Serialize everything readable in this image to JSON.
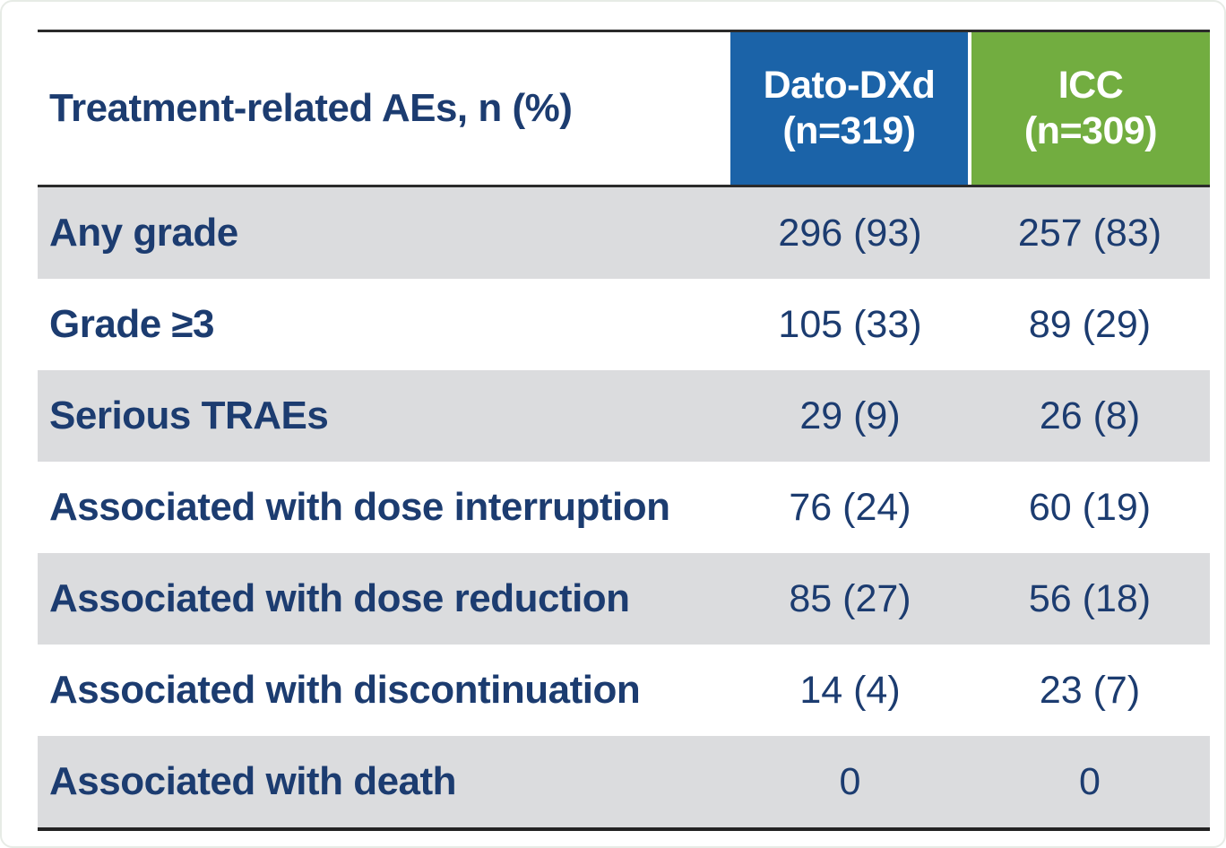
{
  "colors": {
    "dato_header_bg": "#1b63a8",
    "icc_header_bg": "#72ad40",
    "text_navy": "#1c3c70",
    "alt_row_bg": "#dbdcde",
    "border_dark": "#2b2b2b",
    "header_text": "#ffffff"
  },
  "table": {
    "title": "Treatment-related AEs, n (%)",
    "columns": [
      {
        "label": "Dato-DXd",
        "sublabel": "(n=319)"
      },
      {
        "label": "ICC",
        "sublabel": "(n=309)"
      }
    ],
    "rows": [
      {
        "label": "Any grade",
        "dato_dxd": "296 (93)",
        "icc": "257 (83)"
      },
      {
        "label": "Grade ≥3",
        "dato_dxd": "105 (33)",
        "icc": "89 (29)"
      },
      {
        "label": "Serious TRAEs",
        "dato_dxd": "29 (9)",
        "icc": "26 (8)"
      },
      {
        "label": "Associated with dose interruption",
        "dato_dxd": "76 (24)",
        "icc": "60 (19)"
      },
      {
        "label": "Associated with dose reduction",
        "dato_dxd": "85 (27)",
        "icc": "56 (18)"
      },
      {
        "label": "Associated with discontinuation",
        "dato_dxd": "14 (4)",
        "icc": "23 (7)"
      },
      {
        "label": "Associated with death",
        "dato_dxd": "0",
        "icc": "0"
      }
    ]
  },
  "chart_data": {
    "type": "table",
    "title": "Treatment-related AEs, n (%)",
    "columns": [
      "Treatment-related AEs, n (%)",
      "Dato-DXd (n=319)",
      "ICC (n=309)"
    ],
    "rows": [
      [
        "Any grade",
        "296 (93)",
        "257 (83)"
      ],
      [
        "Grade ≥3",
        "105 (33)",
        "89 (29)"
      ],
      [
        "Serious TRAEs",
        "29 (9)",
        "26 (8)"
      ],
      [
        "Associated with dose interruption",
        "76 (24)",
        "60 (19)"
      ],
      [
        "Associated with dose reduction",
        "85 (27)",
        "56 (18)"
      ],
      [
        "Associated with discontinuation",
        "14 (4)",
        "23 (7)"
      ],
      [
        "Associated with death",
        "0",
        "0"
      ]
    ],
    "notes": "Safety table comparing treatment-related adverse events between Dato-DXd (n=319) and ICC (n=309) arms; numbers are n (%)"
  }
}
